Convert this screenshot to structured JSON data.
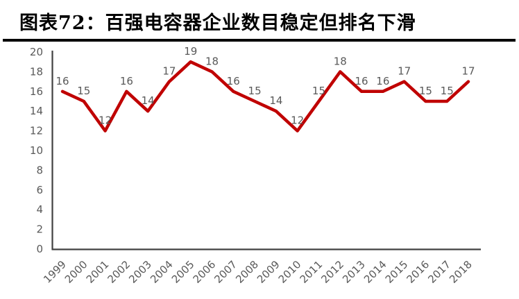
{
  "figure": {
    "title": "图表72：百强电容器企业数目稳定但排名下滑"
  },
  "colors": {
    "line": "#C00000",
    "labels": "#595959",
    "axis": "#404040",
    "title_rule": "#000000"
  },
  "chart_data": {
    "type": "line",
    "title": "图表72：百强电容器企业数目稳定但排名下滑",
    "x": [
      "1999",
      "2000",
      "2001",
      "2002",
      "2003",
      "2004",
      "2005",
      "2006",
      "2007",
      "2008",
      "2009",
      "2010",
      "2011",
      "2012",
      "2013",
      "2014",
      "2015",
      "2016",
      "2017",
      "2018"
    ],
    "values": [
      16,
      15,
      12,
      16,
      14,
      17,
      19,
      18,
      16,
      15,
      14,
      12,
      15,
      18,
      16,
      16,
      17,
      15,
      15,
      17
    ],
    "xlabel": "",
    "ylabel": "",
    "ylim": [
      0,
      20
    ],
    "ytick_step": 2,
    "yticks": [
      0,
      2,
      4,
      6,
      8,
      10,
      12,
      14,
      16,
      18,
      20
    ],
    "data_labels": true,
    "grid": false,
    "legend": false,
    "x_label_rotation_deg": -45
  }
}
